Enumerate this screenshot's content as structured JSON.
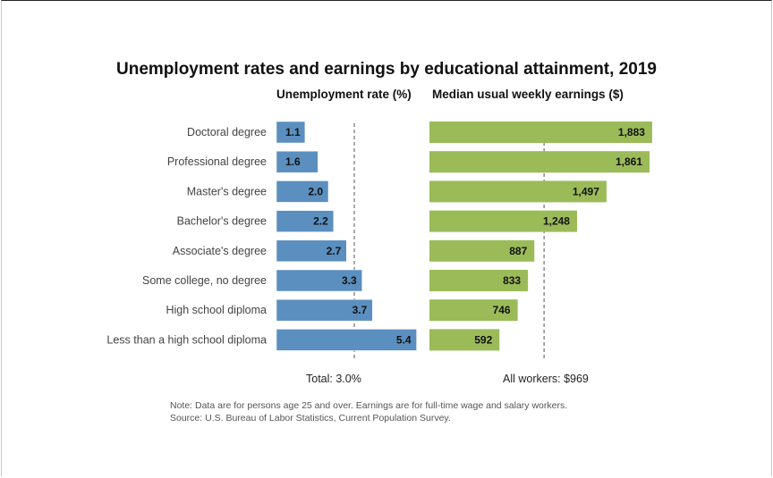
{
  "chart_data": [
    {
      "type": "bar",
      "title": "Unemployment rates and earnings by educational attainment, 2019",
      "subtitle": "Unemployment rate (%)",
      "categories": [
        "Doctoral degree",
        "Professional degree",
        "Master's degree",
        "Bachelor's degree",
        "Associate's degree",
        "Some college, no degree",
        "High school diploma",
        "Less than a high school diploma"
      ],
      "values": [
        1.1,
        1.6,
        2.0,
        2.2,
        2.7,
        3.3,
        3.7,
        5.4
      ],
      "value_labels": [
        "1.1",
        "1.6",
        "2.0",
        "2.2",
        "2.7",
        "3.3",
        "3.7",
        "5.4"
      ],
      "reference_value": 3.0,
      "reference_label": "Total: 3.0%",
      "orientation": "horizontal",
      "color": "#5b8fbf",
      "grid": false
    },
    {
      "type": "bar",
      "subtitle": "Median usual weekly earnings ($)",
      "categories": [
        "Doctoral degree",
        "Professional degree",
        "Master's degree",
        "Bachelor's degree",
        "Associate's degree",
        "Some college, no degree",
        "High school diploma",
        "Less than a high school diploma"
      ],
      "values": [
        1883,
        1861,
        1497,
        1248,
        887,
        833,
        746,
        592
      ],
      "value_labels": [
        "1,883",
        "1,861",
        "1,497",
        "1,248",
        "887",
        "833",
        "746",
        "592"
      ],
      "reference_value": 969,
      "reference_label": "All workers: $969",
      "orientation": "horizontal",
      "color": "#9bbb59",
      "grid": false
    }
  ],
  "notes": {
    "line1": "Note: Data are for persons age 25 and over. Earnings are for full-time wage and salary workers.",
    "line2": "Source: U.S. Bureau of Labor Statistics, Current Population Survey."
  }
}
